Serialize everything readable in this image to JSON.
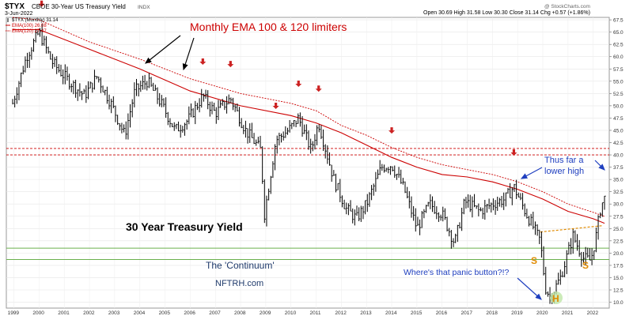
{
  "header": {
    "symbol": "$TYX",
    "name": "CBOE 30-Year US Treasury Yield",
    "exchange": "INDX",
    "date": "3-Jun-2022",
    "watermark": "@ StockCharts.com",
    "ohlc": "Open 30.69  High 31.58  Low 30.30  Close 31.14  Chg +0.57 (+1.86%)",
    "ohlc_direction": "up",
    "legend": [
      {
        "label": "$TYX (Monthly) 31.14",
        "color": "#000000",
        "style": "bar"
      },
      {
        "label": "EMA(100) 26.08",
        "color": "#cc0000",
        "style": "solid"
      },
      {
        "label": "EMA(120) 27.47",
        "color": "#cc0000",
        "style": "dotted"
      }
    ]
  },
  "annotations": {
    "ema_note": "Monthly EMA 100 & 120 limiters",
    "title": "30 Year Treasury Yield",
    "continuum": "The 'Continuum'",
    "site": "NFTRH.com",
    "lower_high": [
      "Thus far a",
      "lower high"
    ],
    "panic": "Where's that panic button?!?",
    "s_left": "S",
    "s_right": "S",
    "head": "H",
    "colors": {
      "red": "#cc0000",
      "blue": "#1f3fbf",
      "navy": "#1f3a6b",
      "orange": "#e08a00",
      "green": "#6ab04c"
    }
  },
  "chart_data": {
    "type": "ohlc",
    "title": "30 Year Treasury Yield",
    "frequency": "monthly",
    "ylim": [
      8.8,
      68.0
    ],
    "y_ticks": [
      10.0,
      12.5,
      15.0,
      17.5,
      20.0,
      22.5,
      25.0,
      27.5,
      30.0,
      32.5,
      35.0,
      37.5,
      40.0,
      42.5,
      45.0,
      47.5,
      50.0,
      52.5,
      55.0,
      57.5,
      60.0,
      62.5,
      65.0,
      67.5
    ],
    "x_ticks": [
      "1999",
      "2000",
      "2001",
      "2002",
      "2003",
      "2004",
      "2005",
      "2006",
      "2007",
      "2008",
      "2009",
      "2010",
      "2011",
      "2012",
      "2013",
      "2014",
      "2015",
      "2016",
      "2017",
      "2018",
      "2019",
      "2020",
      "2021",
      "2022"
    ],
    "series": [
      {
        "name": "$TYX (Monthly)",
        "kind": "price",
        "points": [
          [
            1998.95,
            50.5
          ],
          [
            1999.5,
            60.0
          ],
          [
            2000.0,
            65.0
          ],
          [
            2000.5,
            59.0
          ],
          [
            2001.0,
            56.0
          ],
          [
            2001.8,
            52.0
          ],
          [
            2002.3,
            56.0
          ],
          [
            2002.9,
            50.0
          ],
          [
            2003.4,
            44.0
          ],
          [
            2003.8,
            53.0
          ],
          [
            2004.3,
            55.0
          ],
          [
            2004.9,
            50.0
          ],
          [
            2005.4,
            45.0
          ],
          [
            2005.9,
            47.0
          ],
          [
            2006.5,
            52.0
          ],
          [
            2007.0,
            48.5
          ],
          [
            2007.6,
            51.5
          ],
          [
            2008.2,
            45.0
          ],
          [
            2008.8,
            41.0
          ],
          [
            2008.95,
            28.0
          ],
          [
            2009.4,
            43.0
          ],
          [
            2009.9,
            45.0
          ],
          [
            2010.3,
            47.5
          ],
          [
            2010.8,
            41.0
          ],
          [
            2011.1,
            46.5
          ],
          [
            2011.7,
            35.0
          ],
          [
            2012.2,
            29.0
          ],
          [
            2012.6,
            27.0
          ],
          [
            2013.0,
            30.0
          ],
          [
            2013.6,
            37.5
          ],
          [
            2014.0,
            38.0
          ],
          [
            2014.5,
            33.0
          ],
          [
            2015.0,
            25.0
          ],
          [
            2015.5,
            30.0
          ],
          [
            2016.0,
            28.0
          ],
          [
            2016.5,
            22.0
          ],
          [
            2016.9,
            30.5
          ],
          [
            2017.5,
            28.5
          ],
          [
            2018.0,
            30.0
          ],
          [
            2018.5,
            31.0
          ],
          [
            2018.85,
            33.5
          ],
          [
            2019.3,
            28.5
          ],
          [
            2019.9,
            22.5
          ],
          [
            2020.1,
            13.0
          ],
          [
            2020.3,
            11.0
          ],
          [
            2020.7,
            15.0
          ],
          [
            2021.2,
            23.5
          ],
          [
            2021.6,
            19.0
          ],
          [
            2021.9,
            18.5
          ],
          [
            2022.1,
            23.0
          ],
          [
            2022.3,
            29.5
          ],
          [
            2022.45,
            31.14
          ]
        ]
      },
      {
        "name": "EMA(100)",
        "kind": "line",
        "value_last": 26.08,
        "points": [
          [
            1998.95,
            65.5
          ],
          [
            2000.0,
            65.5
          ],
          [
            2002.0,
            61.5
          ],
          [
            2004.0,
            57.5
          ],
          [
            2006.0,
            53.0
          ],
          [
            2008.0,
            50.0
          ],
          [
            2010.0,
            48.0
          ],
          [
            2011.0,
            46.5
          ],
          [
            2012.0,
            44.5
          ],
          [
            2013.0,
            42.0
          ],
          [
            2014.0,
            39.5
          ],
          [
            2015.0,
            37.5
          ],
          [
            2016.0,
            36.0
          ],
          [
            2017.0,
            35.5
          ],
          [
            2018.0,
            34.5
          ],
          [
            2019.0,
            33.0
          ],
          [
            2020.0,
            31.0
          ],
          [
            2021.0,
            28.5
          ],
          [
            2022.0,
            27.0
          ],
          [
            2022.45,
            26.08
          ]
        ]
      },
      {
        "name": "EMA(120)",
        "kind": "line",
        "value_last": 27.47,
        "points": [
          [
            1998.95,
            68.0
          ],
          [
            2000.0,
            67.5
          ],
          [
            2002.0,
            63.0
          ],
          [
            2004.0,
            59.5
          ],
          [
            2006.0,
            55.5
          ],
          [
            2008.0,
            52.5
          ],
          [
            2010.0,
            50.5
          ],
          [
            2011.0,
            49.0
          ],
          [
            2012.0,
            46.0
          ],
          [
            2013.0,
            44.0
          ],
          [
            2014.0,
            41.5
          ],
          [
            2015.0,
            39.5
          ],
          [
            2016.0,
            38.0
          ],
          [
            2017.0,
            37.0
          ],
          [
            2018.0,
            36.0
          ],
          [
            2019.0,
            34.5
          ],
          [
            2020.0,
            32.5
          ],
          [
            2021.0,
            30.0
          ],
          [
            2022.0,
            28.3
          ],
          [
            2022.45,
            27.47
          ]
        ]
      }
    ],
    "levels": [
      {
        "kind": "red-dotted",
        "value": 41.3
      },
      {
        "kind": "red-dotted",
        "value": 40.0
      },
      {
        "kind": "green",
        "value": 21.0
      },
      {
        "kind": "green",
        "value": 18.7
      },
      {
        "kind": "orange-neckline",
        "from": [
          2019.9,
          24.3
        ],
        "to": [
          2022.4,
          25.6
        ]
      }
    ],
    "peak_markers": [
      2000.1,
      2006.5,
      2007.6,
      2009.4,
      2010.3,
      2011.1,
      2014.0,
      2018.85
    ]
  }
}
